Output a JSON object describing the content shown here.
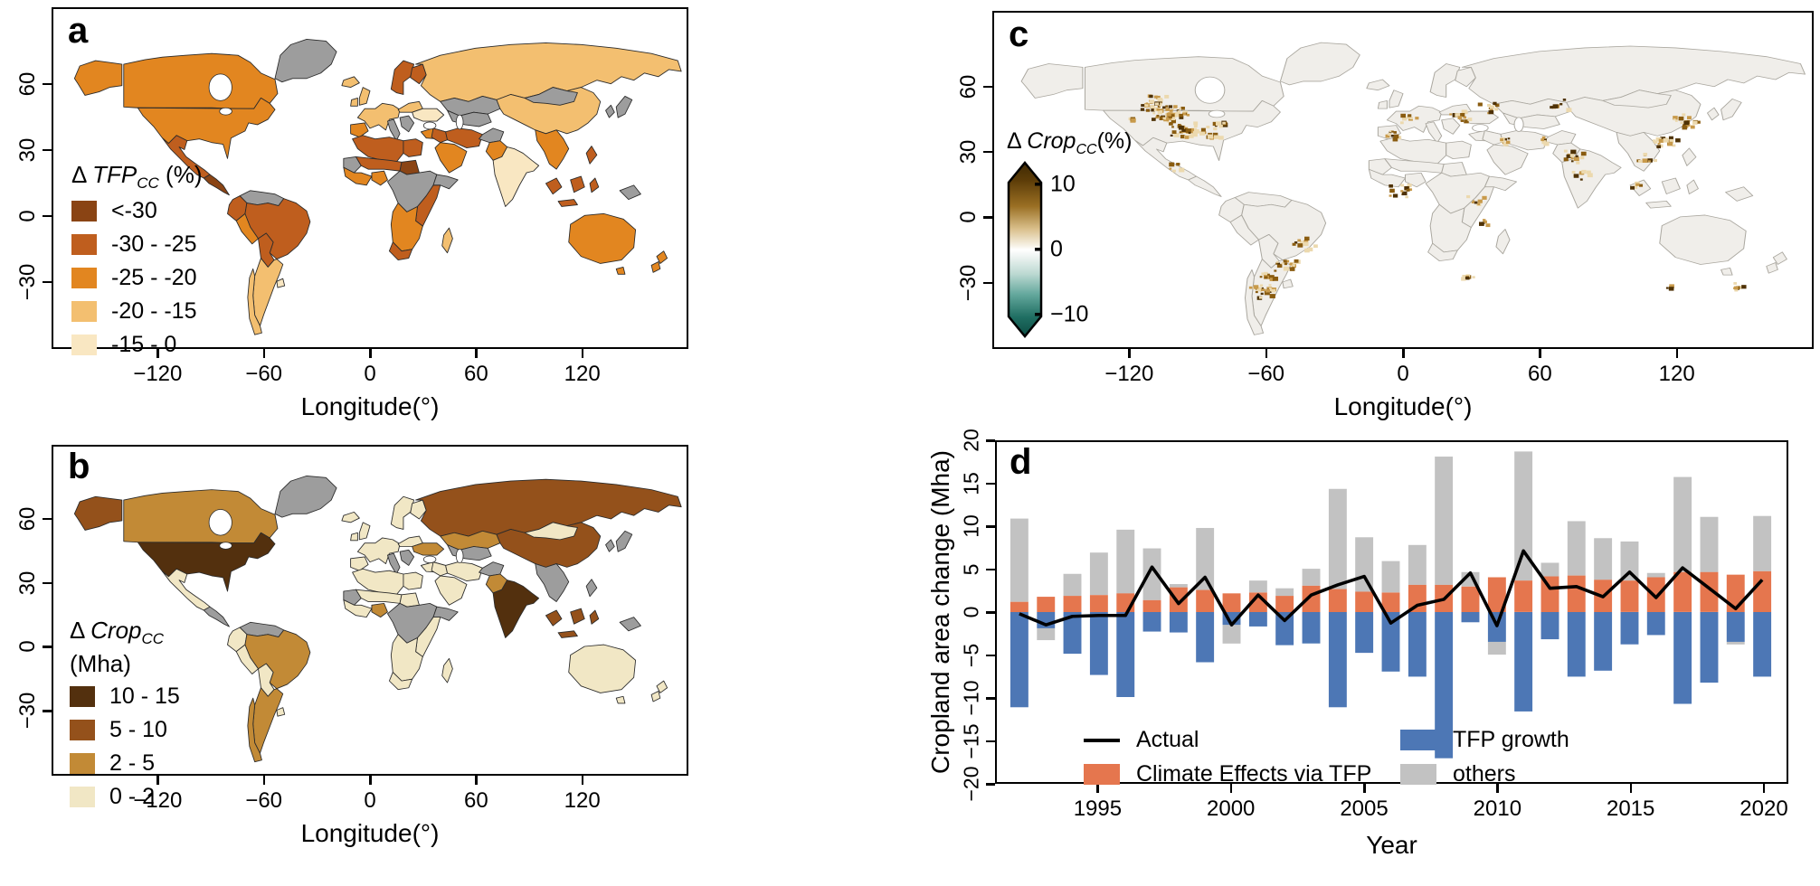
{
  "figure": {
    "bg": "#ffffff"
  },
  "panels": {
    "a": {
      "label": "a",
      "xlabel": "Longitude(°)",
      "xticks": [
        "−120",
        "−60",
        "0",
        "60",
        "120"
      ],
      "yticks": [
        "60",
        "30",
        "0",
        "−30"
      ],
      "legend": {
        "title": {
          "delta": "Δ ",
          "name": "TFP",
          "sub": "CC",
          "rest": " (%)"
        },
        "entries": [
          {
            "label": "<-30",
            "color": "#8a4414"
          },
          {
            "label": "-30 - -25",
            "color": "#bf5e1e"
          },
          {
            "label": "-25 - -20",
            "color": "#e28620"
          },
          {
            "label": "-20 - -15",
            "color": "#f3bf70"
          },
          {
            "label": "-15 - 0",
            "color": "#f9e7c2"
          }
        ]
      },
      "nodata_color": "#9d9d9d"
    },
    "b": {
      "label": "b",
      "xlabel": "Longitude(°)",
      "xticks": [
        "−120",
        "−60",
        "0",
        "60",
        "120"
      ],
      "yticks": [
        "60",
        "30",
        "0",
        "−30"
      ],
      "legend": {
        "title": {
          "delta": "Δ ",
          "name": "Crop",
          "sub": "CC",
          "rest": ""
        },
        "title_line2": "(Mha)",
        "entries": [
          {
            "label": "10 - 15",
            "color": "#53300e"
          },
          {
            "label": "5 - 10",
            "color": "#94511b"
          },
          {
            "label": "2 - 5",
            "color": "#c28a36"
          },
          {
            "label": "0 - 2",
            "color": "#f1e7c5"
          }
        ]
      },
      "nodata_color": "#9d9d9d"
    },
    "c": {
      "label": "c",
      "xlabel": "Longitude(°)",
      "xticks": [
        "−120",
        "−60",
        "0",
        "60",
        "120"
      ],
      "yticks": [
        "60",
        "30",
        "0",
        "−30"
      ],
      "colorbar": {
        "title": {
          "delta": "Δ ",
          "name": "Crop",
          "sub": "CC",
          "rest": "(%)"
        },
        "tick_labels": [
          "10",
          "0",
          "−10"
        ],
        "top_color": "#3f2a04",
        "mid_color": "#ffffff",
        "bottom_color": "#0d4d44"
      },
      "land_color": "#f0eeea",
      "border_color": "#aaa79f",
      "speckle_ramp": [
        "#ecd9ae",
        "#c89a4b",
        "#8a5c10",
        "#4f3206"
      ],
      "hotspots": [
        [
          -103,
          48,
          45,
          8
        ],
        [
          -97,
          41,
          30,
          7
        ],
        [
          -86,
          40,
          16,
          6
        ],
        [
          -120,
          46,
          6,
          3
        ],
        [
          -110,
          53,
          28,
          7
        ],
        [
          -80,
          44,
          8,
          4
        ],
        [
          -102,
          24,
          6,
          4
        ],
        [
          -62,
          -34,
          26,
          6
        ],
        [
          -60,
          -27,
          10,
          5
        ],
        [
          -51,
          -21,
          16,
          6
        ],
        [
          -45,
          -12,
          12,
          6
        ],
        [
          -4,
          39,
          10,
          4
        ],
        [
          2,
          46,
          8,
          4
        ],
        [
          24,
          47,
          14,
          6
        ],
        [
          37,
          51,
          10,
          6
        ],
        [
          44,
          36,
          8,
          4
        ],
        [
          0,
          13,
          16,
          9
        ],
        [
          32,
          8,
          8,
          5
        ],
        [
          36,
          -2,
          5,
          3
        ],
        [
          27,
          -28,
          8,
          4
        ],
        [
          75,
          28,
          14,
          6
        ],
        [
          77,
          20,
          10,
          6
        ],
        [
          62,
          36,
          6,
          3
        ],
        [
          68,
          53,
          8,
          5
        ],
        [
          114,
          35,
          18,
          6
        ],
        [
          124,
          45,
          18,
          6
        ],
        [
          106,
          28,
          8,
          4
        ],
        [
          103,
          15,
          6,
          3
        ],
        [
          147,
          -32,
          8,
          4
        ],
        [
          117,
          -32,
          4,
          2
        ]
      ]
    },
    "d": {
      "label": "d",
      "xlabel": "Year",
      "ylabel": "Cropland area change (Mha)",
      "xticks": [
        "1995",
        "2000",
        "2005",
        "2010",
        "2015",
        "2020"
      ],
      "yticks": [
        "20",
        "15",
        "10",
        "5",
        "0",
        "−5",
        "−10",
        "−15",
        "−20"
      ],
      "legend": [
        {
          "label": "Actual",
          "type": "line",
          "color": "#000000"
        },
        {
          "label": "Climate Effects via TFP",
          "type": "box",
          "color": "#e5764e"
        },
        {
          "label": "TFP growth",
          "type": "box",
          "color": "#4d77b5"
        },
        {
          "label": "others",
          "type": "box",
          "color": "#c2c2c2"
        }
      ]
    }
  },
  "maps": {
    "a_palette": {
      "c1": "#8a4414",
      "c2": "#bf5e1e",
      "c3": "#e28620",
      "c4": "#f3bf70",
      "c5": "#f9e7c2",
      "x": "#9d9d9d"
    },
    "b_palette": {
      "b1": "#53300e",
      "b2": "#94511b",
      "b3": "#c28a36",
      "b4": "#f1e7c5",
      "x": "#9d9d9d"
    },
    "region_classes": {
      "alaska": [
        "c3",
        "b2"
      ],
      "canada": [
        "c3",
        "b3"
      ],
      "usa": [
        "c3",
        "b1"
      ],
      "mexico": [
        "c2",
        "b4"
      ],
      "camerica": [
        "c1",
        "x"
      ],
      "greenland": [
        "x",
        "x"
      ],
      "venezuela": [
        "x",
        "x"
      ],
      "colombia": [
        "c2",
        "b4"
      ],
      "peru": [
        "c3",
        "b4"
      ],
      "brazil": [
        "c2",
        "b3"
      ],
      "bolivia": [
        "c2",
        "b4"
      ],
      "argentina": [
        "c4",
        "b3"
      ],
      "uruguay": [
        "c5",
        "b4"
      ],
      "chile": [
        "c4",
        "b3"
      ],
      "iceland": [
        "c4",
        "b4"
      ],
      "uk": [
        "c4",
        "b4"
      ],
      "ireland": [
        "c4",
        "b4"
      ],
      "scandinavia": [
        "c2",
        "b4"
      ],
      "finland": [
        "c2",
        "b4"
      ],
      "weurope": [
        "c4",
        "b4"
      ],
      "italy": [
        "x",
        "x"
      ],
      "iberia": [
        "c3",
        "b4"
      ],
      "poland": [
        "c4",
        "b4"
      ],
      "ukraine": [
        "c5",
        "b3"
      ],
      "balkans": [
        "x",
        "x"
      ],
      "turkey": [
        "c3",
        "b4"
      ],
      "nafrica": [
        "c2",
        "b4"
      ],
      "egypt": [
        "c2",
        "b4"
      ],
      "mauritania": [
        "x",
        "x"
      ],
      "sahel": [
        "c2",
        "b4"
      ],
      "chad": [
        "c1",
        "b4"
      ],
      "wafrica": [
        "c3",
        "b4"
      ],
      "nigeria": [
        "c3",
        "b3"
      ],
      "cafrica": [
        "x",
        "x"
      ],
      "horn": [
        "x",
        "x"
      ],
      "eafrica": [
        "c2",
        "b4"
      ],
      "safrica": [
        "c3",
        "b4"
      ],
      "satip": [
        "c2",
        "b4"
      ],
      "madagascar": [
        "c4",
        "b4"
      ],
      "russia": [
        "c4",
        "b2"
      ],
      "kazakhstan": [
        "x",
        "b3"
      ],
      "centralasia": [
        "x",
        "x"
      ],
      "iraq": [
        "c2",
        "b4"
      ],
      "iran": [
        "c2",
        "b4"
      ],
      "arabia": [
        "c3",
        "b4"
      ],
      "afghanistan": [
        "x",
        "x"
      ],
      "pakistan": [
        "c3",
        "b3"
      ],
      "india": [
        "c5",
        "b1"
      ],
      "china": [
        "c4",
        "b2"
      ],
      "mongolia": [
        "x",
        "b4"
      ],
      "seasia": [
        "c3",
        "x"
      ],
      "sumatra": [
        "c2",
        "b2"
      ],
      "borneo": [
        "c2",
        "b2"
      ],
      "java": [
        "c2",
        "b2"
      ],
      "sulawesi": [
        "c2",
        "b2"
      ],
      "newguinea": [
        "x",
        "x"
      ],
      "philippines": [
        "c2",
        "x"
      ],
      "japan": [
        "x",
        "x"
      ],
      "korea": [
        "x",
        "x"
      ],
      "australia": [
        "c3",
        "b4"
      ],
      "tasmania": [
        "c3",
        "b4"
      ],
      "nz1": [
        "c3",
        "b4"
      ],
      "nz2": [
        "c3",
        "b4"
      ]
    }
  },
  "chart_data": {
    "type": "bar",
    "subtype": "stacked bars with overlaid line",
    "title": "",
    "xlabel": "Year",
    "ylabel": "Cropland area change (Mha)",
    "ylim": [
      -20,
      20
    ],
    "x": [
      1992,
      1993,
      1994,
      1995,
      1996,
      1997,
      1998,
      1999,
      2000,
      2001,
      2002,
      2003,
      2004,
      2005,
      2006,
      2007,
      2008,
      2009,
      2010,
      2011,
      2012,
      2013,
      2014,
      2015,
      2016,
      2017,
      2018,
      2019,
      2020
    ],
    "series": [
      {
        "name": "Climate Effects via TFP",
        "type": "bar",
        "color": "#e5764e",
        "values": [
          1.2,
          1.8,
          1.9,
          2.0,
          2.2,
          1.4,
          2.9,
          2.6,
          2.2,
          2.3,
          1.9,
          3.1,
          2.7,
          2.4,
          2.3,
          3.2,
          3.2,
          3.0,
          4.1,
          3.7,
          4.2,
          4.3,
          3.8,
          3.7,
          4.1,
          4.7,
          4.7,
          4.4,
          4.8
        ]
      },
      {
        "name": "TFP growth",
        "type": "bar",
        "color": "#4d77b5",
        "values": [
          -11.2,
          -1.9,
          -4.9,
          -7.4,
          -10.0,
          -2.3,
          -2.4,
          -5.9,
          -1.5,
          -1.7,
          -3.9,
          -3.7,
          -11.2,
          -4.8,
          -7.0,
          -7.6,
          -17.2,
          -1.2,
          -3.5,
          -11.7,
          -3.2,
          -7.6,
          -6.9,
          -3.8,
          -2.7,
          -10.8,
          -8.3,
          -3.5,
          -7.6
        ]
      },
      {
        "name": "others",
        "type": "bar",
        "color": "#c2c2c2",
        "values": [
          9.8,
          -1.4,
          2.6,
          5.0,
          7.5,
          6.1,
          0.4,
          7.3,
          -2.2,
          1.4,
          0.9,
          2.0,
          11.8,
          6.4,
          3.7,
          4.7,
          15.1,
          1.7,
          -1.5,
          15.2,
          1.6,
          6.4,
          4.9,
          4.6,
          0.5,
          11.2,
          6.5,
          -0.3,
          6.5
        ]
      },
      {
        "name": "Actual",
        "type": "line",
        "color": "#000000",
        "values": [
          -0.2,
          -1.5,
          -0.5,
          -0.4,
          -0.4,
          5.3,
          1.0,
          4.1,
          -1.5,
          2.0,
          -1.0,
          2.0,
          3.2,
          4.2,
          -1.3,
          0.8,
          1.5,
          4.6,
          -1.6,
          7.2,
          2.8,
          3.0,
          1.8,
          4.7,
          1.7,
          5.2,
          2.8,
          0.4,
          3.8
        ]
      }
    ],
    "legend_position": "bottom-left inside plot"
  }
}
